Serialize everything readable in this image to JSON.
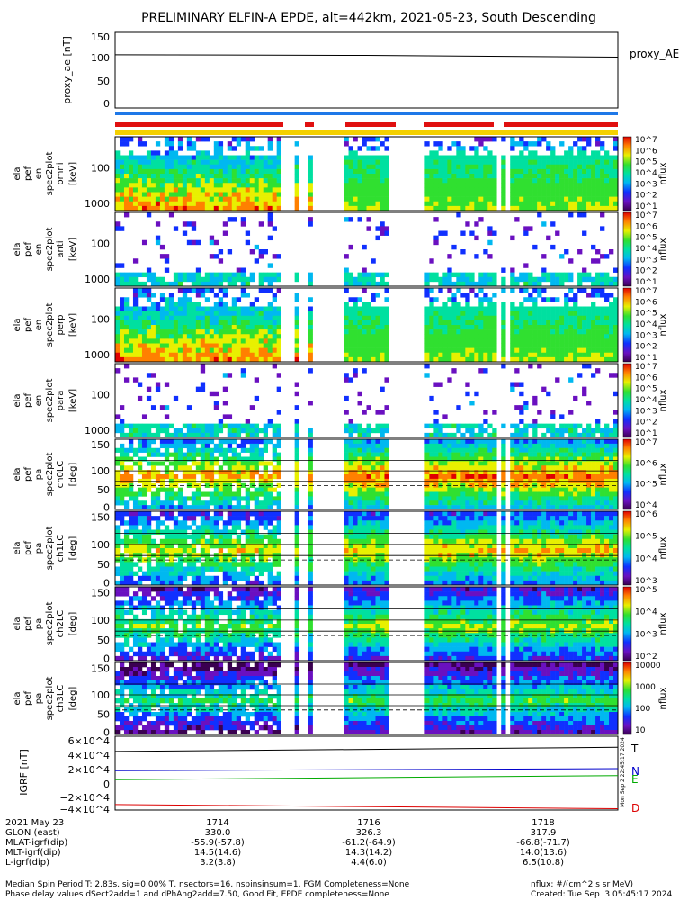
{
  "title": "PRELIMINARY ELFIN-A EPDE, alt=442km, 2021-05-23, South Descending",
  "colors": {
    "ae_line": "#000000",
    "bar_blue": "#1e78e8",
    "bar_red": "#e01010",
    "bar_yellow": "#f4d000",
    "T_color": "#000000",
    "N_color": "#0000cc",
    "E_color": "#00aa00",
    "D_color": "#dd0000"
  },
  "chart_data": [
    {
      "type": "line",
      "panel": "proxy_ae",
      "ylabel": "proxy_ae [nT]",
      "series_label": "proxy_AE",
      "yticks": [
        "150",
        "100",
        "50",
        "0"
      ],
      "ylim": [
        -10,
        155
      ],
      "x": [
        0,
        0.5,
        1.0
      ],
      "values": [
        106,
        105,
        101
      ]
    },
    {
      "type": "heatmap",
      "panel": "spec_omni",
      "ylabel_lines": [
        "ela",
        "pef",
        "en",
        "spec2plot",
        "omni",
        "[keV]"
      ],
      "yticks": [
        "1000",
        "100"
      ],
      "colorbar_label": "nflux",
      "colorbar_ticks": [
        "10^7",
        "10^6",
        "10^5",
        "10^4",
        "10^3",
        "10^2",
        "10^1"
      ]
    },
    {
      "type": "heatmap",
      "panel": "spec_anti",
      "ylabel_lines": [
        "ela",
        "pef",
        "en",
        "spec2plot",
        "anti",
        "[keV]"
      ],
      "yticks": [
        "1000",
        "100"
      ],
      "colorbar_label": "nflux",
      "colorbar_ticks": [
        "10^7",
        "10^6",
        "10^5",
        "10^4",
        "10^3",
        "10^2",
        "10^1"
      ]
    },
    {
      "type": "heatmap",
      "panel": "spec_perp",
      "ylabel_lines": [
        "ela",
        "pef",
        "en",
        "spec2plot",
        "perp",
        "[keV]"
      ],
      "yticks": [
        "1000",
        "100"
      ],
      "colorbar_label": "nflux",
      "colorbar_ticks": [
        "10^7",
        "10^6",
        "10^5",
        "10^4",
        "10^3",
        "10^2",
        "10^1"
      ]
    },
    {
      "type": "heatmap",
      "panel": "spec_para",
      "ylabel_lines": [
        "ela",
        "pef",
        "en",
        "spec2plot",
        "para",
        "[keV]"
      ],
      "yticks": [
        "1000",
        "100"
      ],
      "colorbar_label": "nflux",
      "colorbar_ticks": [
        "10^7",
        "10^6",
        "10^5",
        "10^4",
        "10^3",
        "10^2",
        "10^1"
      ]
    },
    {
      "type": "heatmap",
      "panel": "pa_ch0",
      "ylabel_lines": [
        "ela",
        "pef",
        "pa",
        "spec2plot",
        "ch0LC",
        "[deg]"
      ],
      "yticks": [
        "150",
        "100",
        "50",
        "0"
      ],
      "colorbar_label": "nflux",
      "colorbar_ticks": [
        "10^7",
        "10^6",
        "10^5",
        "10^4"
      ]
    },
    {
      "type": "heatmap",
      "panel": "pa_ch1",
      "ylabel_lines": [
        "ela",
        "pef",
        "pa",
        "spec2plot",
        "ch1LC",
        "[deg]"
      ],
      "yticks": [
        "150",
        "100",
        "50",
        "0"
      ],
      "colorbar_label": "nflux",
      "colorbar_ticks": [
        "10^6",
        "10^5",
        "10^4",
        "10^3"
      ]
    },
    {
      "type": "heatmap",
      "panel": "pa_ch2",
      "ylabel_lines": [
        "ela",
        "pef",
        "pa",
        "spec2plot",
        "ch2LC",
        "[deg]"
      ],
      "yticks": [
        "150",
        "100",
        "50",
        "0"
      ],
      "colorbar_label": "nflux",
      "colorbar_ticks": [
        "10^5",
        "10^4",
        "10^3",
        "10^2"
      ]
    },
    {
      "type": "heatmap",
      "panel": "pa_ch3",
      "ylabel_lines": [
        "ela",
        "pef",
        "pa",
        "spec2plot",
        "ch3LC",
        "[deg]"
      ],
      "yticks": [
        "150",
        "100",
        "50",
        "0"
      ],
      "colorbar_label": "nflux",
      "colorbar_ticks": [
        "10000",
        "1000",
        "100",
        "10"
      ]
    },
    {
      "type": "line",
      "panel": "igrf",
      "ylabel": "IGRF [nT]",
      "yticks": [
        "6×10^4",
        "4×10^4",
        "2×10^4",
        "0",
        "−2×10^4",
        "−4×10^4"
      ],
      "ylim": [
        -45000,
        62000
      ],
      "x": [
        0,
        1
      ],
      "series": [
        {
          "name": "T",
          "values": [
            40000,
            46000
          ]
        },
        {
          "name": "N",
          "values": [
            12000,
            15000
          ]
        },
        {
          "name": "E",
          "values": [
            -1000,
            5000
          ]
        },
        {
          "name": "D",
          "values": [
            -37000,
            -43000
          ]
        }
      ]
    }
  ],
  "footer": {
    "rows": [
      {
        "label": "2021 May 23",
        "v1": "1714",
        "v2": "1716",
        "v3": "1718"
      },
      {
        "label": "GLON (east)",
        "v1": "330.0",
        "v2": "326.3",
        "v3": "317.9"
      },
      {
        "label": "MLAT-igrf(dip)",
        "v1": "-55.9(-57.8)",
        "v2": "-61.2(-64.9)",
        "v3": "-66.8(-71.7)"
      },
      {
        "label": "MLT-igrf(dip)",
        "v1": "14.5(14.6)",
        "v2": "14.3(14.2)",
        "v3": "14.0(13.6)"
      },
      {
        "label": "L-igrf(dip)",
        "v1": "3.2(3.8)",
        "v2": "4.4(6.0)",
        "v3": "6.5(10.8)"
      }
    ],
    "note1": "Median Spin Period T: 2.83s, sig=0.00% T, nsectors=16, nspinsinsum=1, FGM Completeness=None",
    "note2": "Phase delay values dSect2add=1 and dPhAng2add=7.50, Good Fit, EPDE completeness=None",
    "units": "nflux: #/(cm^2 s sr MeV)",
    "created": "Created: Tue Sep  3 05:45:17 2024",
    "side_stamp": "Mon Sep 2 22:45:17 2024"
  }
}
